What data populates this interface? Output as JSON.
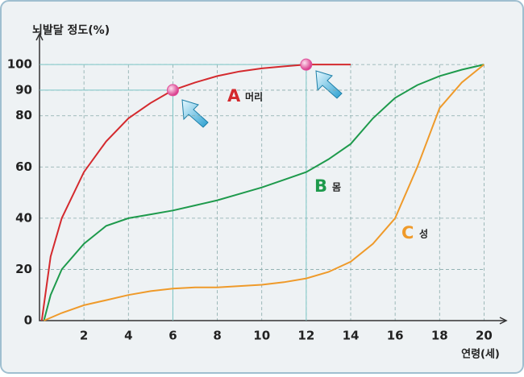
{
  "chart_data": {
    "type": "line",
    "title": "뇌발달 정도(%)",
    "x_label": "연령(세)",
    "xlim": [
      0,
      21
    ],
    "ylim": [
      0,
      112
    ],
    "xticks": [
      2,
      4,
      6,
      8,
      10,
      12,
      14,
      16,
      18,
      20
    ],
    "yticks": [
      0,
      20,
      40,
      60,
      80,
      90,
      100
    ],
    "grid": true,
    "series": [
      {
        "label": "A",
        "name": "머리",
        "color": "#d42a2e",
        "x": [
          0.1,
          0.5,
          1,
          2,
          3,
          4,
          5,
          6,
          7,
          8,
          9,
          10,
          11,
          12,
          13,
          14
        ],
        "values": [
          0,
          25,
          40,
          58,
          70,
          79,
          85,
          90,
          93,
          95.5,
          97.3,
          98.5,
          99.3,
          100,
          100,
          100
        ]
      },
      {
        "label": "B",
        "name": "몸",
        "color": "#1e9a4c",
        "x": [
          0.2,
          0.5,
          1,
          2,
          3,
          4,
          5,
          6,
          7,
          8,
          9,
          10,
          11,
          12,
          13,
          14,
          15,
          16,
          17,
          18,
          19,
          20
        ],
        "values": [
          0,
          10,
          20,
          30,
          37,
          40,
          41.5,
          43,
          45,
          47,
          49.5,
          52,
          55,
          58,
          63,
          69,
          79,
          87,
          92,
          95.5,
          98,
          100
        ]
      },
      {
        "label": "C",
        "name": "성",
        "color": "#ef9a2a",
        "x": [
          0.2,
          1,
          2,
          3,
          4,
          5,
          6,
          7,
          8,
          9,
          10,
          11,
          12,
          13,
          14,
          15,
          16,
          17,
          18,
          19,
          20
        ],
        "values": [
          0,
          3,
          6,
          8,
          10,
          11.5,
          12.5,
          13,
          13,
          13.5,
          14,
          15,
          16.5,
          19,
          23,
          30,
          40,
          60,
          83,
          93,
          100
        ]
      }
    ],
    "highlight_points": {
      "x": [
        6,
        12
      ],
      "y": [
        90,
        100
      ],
      "color": "#e0509a"
    }
  }
}
